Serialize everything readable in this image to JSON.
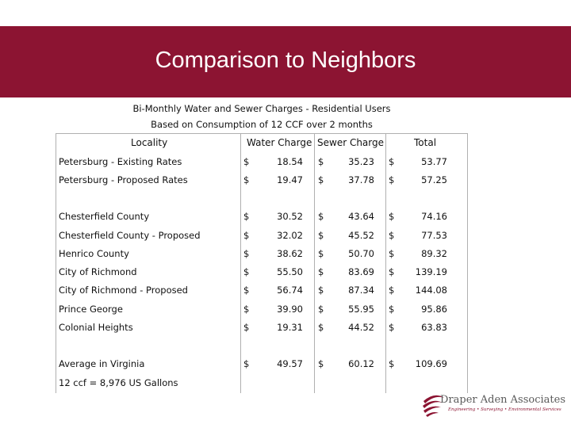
{
  "slide": {
    "title": "Comparison to Neighbors",
    "caption_line1": "Bi-Monthly Water and Sewer Charges - Residential Users",
    "caption_line2": "Based on Consumption of 12 CCF over 2 months",
    "footnote": "12 ccf = 8,976 US Gallons"
  },
  "table": {
    "headers": {
      "locality": "Locality",
      "water": "Water Charge",
      "sewer": "Sewer Charge",
      "total": "Total"
    },
    "currency": "$",
    "rows": [
      {
        "locality": "Petersburg - Existing Rates",
        "water": "18.54",
        "sewer": "35.23",
        "total": "53.77"
      },
      {
        "locality": "Petersburg - Proposed Rates",
        "water": "19.47",
        "sewer": "37.78",
        "total": "57.25"
      },
      {
        "locality": "Chesterfield County",
        "water": "30.52",
        "sewer": "43.64",
        "total": "74.16"
      },
      {
        "locality": "Chesterfield County - Proposed",
        "water": "32.02",
        "sewer": "45.52",
        "total": "77.53"
      },
      {
        "locality": "Henrico County",
        "water": "38.62",
        "sewer": "50.70",
        "total": "89.32"
      },
      {
        "locality": "City of Richmond",
        "water": "55.50",
        "sewer": "83.69",
        "total": "139.19"
      },
      {
        "locality": "City of Richmond - Proposed",
        "water": "56.74",
        "sewer": "87.34",
        "total": "144.08"
      },
      {
        "locality": "Prince George",
        "water": "39.90",
        "sewer": "55.95",
        "total": "95.86"
      },
      {
        "locality": "Colonial Heights",
        "water": "19.31",
        "sewer": "44.52",
        "total": "63.83"
      },
      {
        "locality": "Average in Virginia",
        "water": "49.57",
        "sewer": "60.12",
        "total": "109.69"
      }
    ]
  },
  "logo": {
    "name": "Draper Aden Associates",
    "tagline": "Engineering • Surveying • Environmental Services",
    "color": "#8c1432"
  }
}
